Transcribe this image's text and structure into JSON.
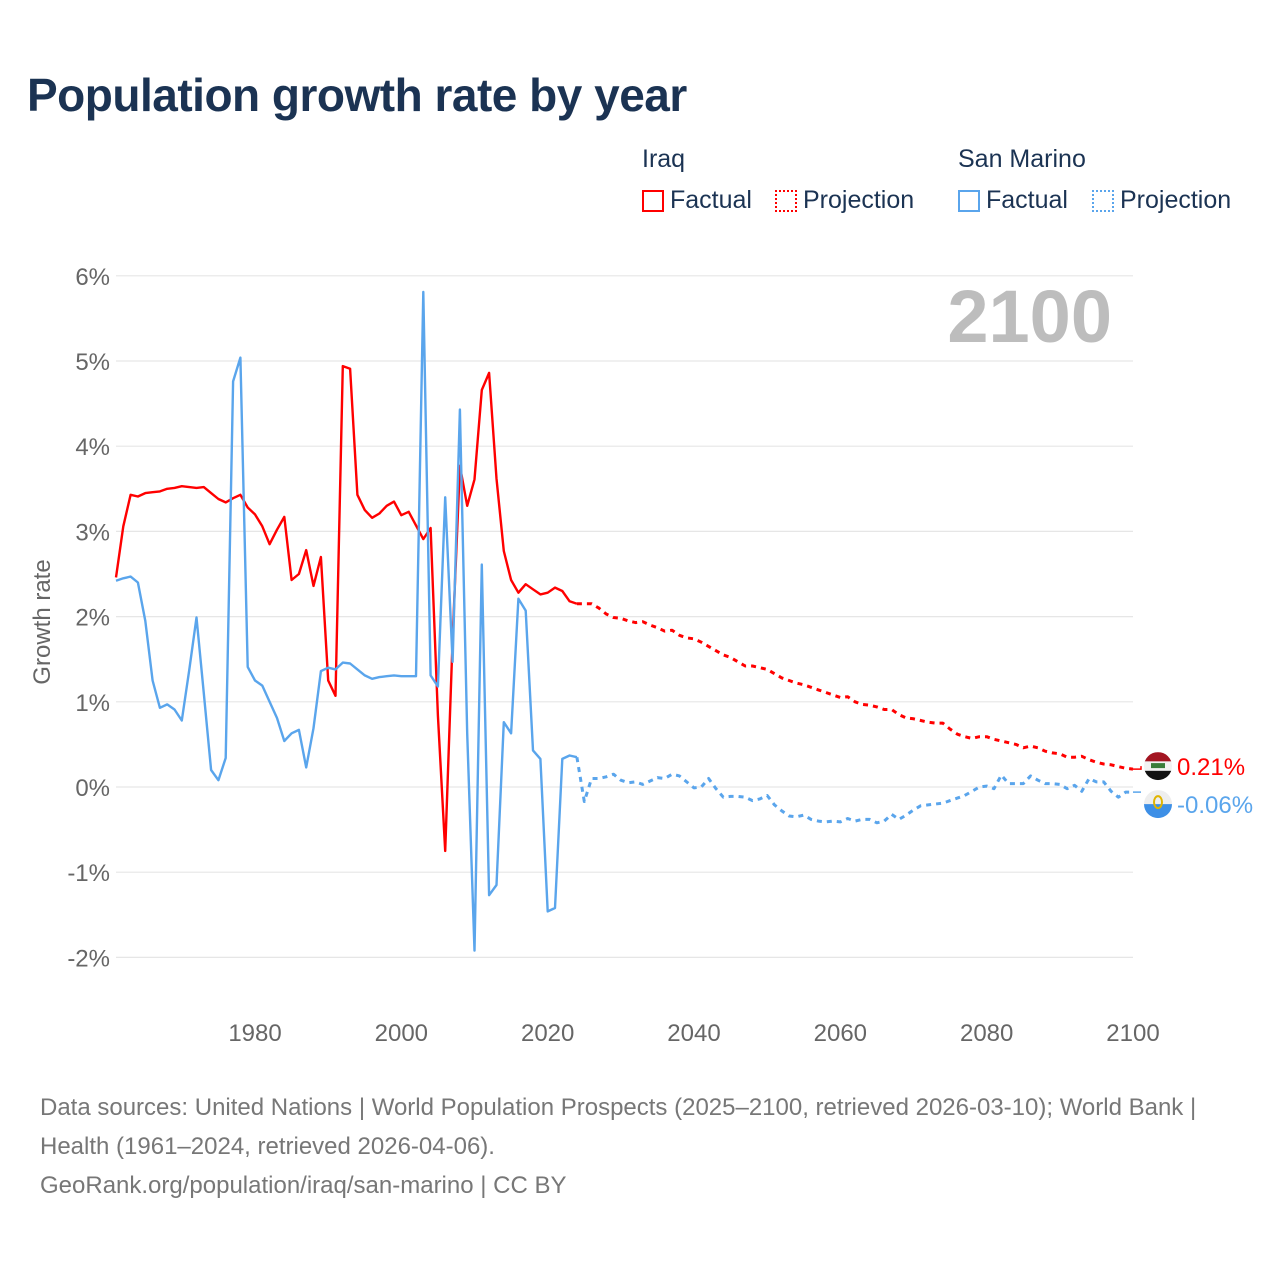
{
  "title": "Population growth rate by year",
  "legend": {
    "groups": [
      {
        "name": "Iraq",
        "factual": "Factual",
        "projection": "Projection"
      },
      {
        "name": "San Marino",
        "factual": "Factual",
        "projection": "Projection"
      }
    ]
  },
  "colors": {
    "iraq": "#ff0000",
    "san_marino": "#5aa5ec",
    "title": "#1b3353"
  },
  "source": {
    "line1": "Data sources: United Nations | World Population Prospects (2025–2100, retrieved 2026-03-10); World Bank | Health (1961–2024, retrieved 2026-04-06).",
    "line2": "GeoRank.org/population/iraq/san-marino | CC BY"
  },
  "chart_data": {
    "type": "line",
    "title": "Population growth rate by year",
    "xlabel": "",
    "ylabel": "Growth rate",
    "year_label": "2100",
    "xlim": [
      1961,
      2100
    ],
    "ylim": [
      -2,
      6
    ],
    "xticks": [
      1980,
      2000,
      2020,
      2040,
      2060,
      2080,
      2100
    ],
    "yticks": [
      -2,
      -1,
      0,
      1,
      2,
      3,
      4,
      5,
      6
    ],
    "ytick_labels": [
      "-2%",
      "-1%",
      "0%",
      "1%",
      "2%",
      "3%",
      "4%",
      "5%",
      "6%"
    ],
    "grid": true,
    "legend_position": "top-right",
    "series": [
      {
        "name": "Iraq",
        "kind": "factual",
        "start_year": 1961,
        "values": [
          2.46,
          3.06,
          3.43,
          3.41,
          3.45,
          3.46,
          3.47,
          3.5,
          3.51,
          3.53,
          3.52,
          3.51,
          3.52,
          3.45,
          3.38,
          3.34,
          3.39,
          3.43,
          3.28,
          3.2,
          3.06,
          2.85,
          3.02,
          3.17,
          2.43,
          2.5,
          2.78,
          2.36,
          2.7,
          1.25,
          1.07,
          4.94,
          4.91,
          3.43,
          3.25,
          3.16,
          3.21,
          3.3,
          3.35,
          3.19,
          3.23,
          3.07,
          2.91,
          3.04,
          0.84,
          -0.75,
          1.73,
          3.77,
          3.3,
          3.61,
          4.66,
          4.86,
          3.62,
          2.77,
          2.43,
          2.28,
          2.38,
          2.32,
          2.26,
          2.28,
          2.34,
          2.3,
          2.18,
          2.15
        ]
      },
      {
        "name": "Iraq",
        "kind": "projection",
        "start_year": 2024,
        "values": [
          2.15,
          2.15,
          2.15,
          2.1,
          2.03,
          1.99,
          1.98,
          1.95,
          1.93,
          1.94,
          1.9,
          1.87,
          1.83,
          1.84,
          1.78,
          1.75,
          1.74,
          1.7,
          1.65,
          1.6,
          1.55,
          1.52,
          1.47,
          1.42,
          1.42,
          1.4,
          1.38,
          1.33,
          1.28,
          1.25,
          1.22,
          1.2,
          1.17,
          1.14,
          1.11,
          1.08,
          1.05,
          1.06,
          1.0,
          0.97,
          0.96,
          0.94,
          0.91,
          0.91,
          0.85,
          0.81,
          0.8,
          0.78,
          0.76,
          0.75,
          0.75,
          0.68,
          0.62,
          0.59,
          0.57,
          0.59,
          0.59,
          0.56,
          0.54,
          0.52,
          0.5,
          0.46,
          0.48,
          0.46,
          0.42,
          0.4,
          0.39,
          0.35,
          0.35,
          0.36,
          0.32,
          0.29,
          0.27,
          0.26,
          0.24,
          0.22,
          0.21
        ]
      },
      {
        "name": "San Marino",
        "kind": "factual",
        "start_year": 1961,
        "values": [
          2.42,
          2.45,
          2.47,
          2.4,
          1.95,
          1.25,
          0.93,
          0.97,
          0.91,
          0.78,
          1.37,
          1.99,
          1.1,
          0.2,
          0.08,
          0.34,
          4.76,
          5.04,
          1.41,
          1.25,
          1.19,
          1.0,
          0.81,
          0.54,
          0.63,
          0.67,
          0.23,
          0.69,
          1.36,
          1.4,
          1.38,
          1.46,
          1.45,
          1.38,
          1.31,
          1.27,
          1.29,
          1.3,
          1.31,
          1.3,
          1.3,
          1.3,
          5.81,
          1.31,
          1.18,
          3.4,
          1.47,
          4.43,
          0.63,
          -1.92,
          2.61,
          -1.27,
          -1.15,
          0.76,
          0.63,
          2.21,
          2.07,
          0.43,
          0.33,
          -1.46,
          -1.42,
          0.33,
          0.37,
          0.35
        ]
      },
      {
        "name": "San Marino",
        "kind": "projection",
        "start_year": 2024,
        "values": [
          0.35,
          -0.17,
          0.1,
          0.1,
          0.12,
          0.15,
          0.08,
          0.05,
          0.06,
          0.03,
          0.07,
          0.11,
          0.1,
          0.15,
          0.13,
          0.06,
          -0.01,
          0.0,
          0.1,
          -0.02,
          -0.12,
          -0.11,
          -0.11,
          -0.12,
          -0.16,
          -0.14,
          -0.1,
          -0.21,
          -0.28,
          -0.34,
          -0.35,
          -0.33,
          -0.38,
          -0.4,
          -0.41,
          -0.4,
          -0.41,
          -0.37,
          -0.4,
          -0.38,
          -0.38,
          -0.42,
          -0.4,
          -0.32,
          -0.38,
          -0.33,
          -0.27,
          -0.22,
          -0.21,
          -0.2,
          -0.19,
          -0.16,
          -0.13,
          -0.1,
          -0.05,
          0.0,
          0.01,
          -0.02,
          0.14,
          0.04,
          0.04,
          0.04,
          0.13,
          0.08,
          0.04,
          0.04,
          0.03,
          -0.02,
          0.02,
          -0.05,
          0.1,
          0.06,
          0.06,
          -0.05,
          -0.12,
          -0.06,
          -0.06
        ]
      }
    ],
    "end_labels": [
      {
        "name": "Iraq",
        "label": "0.21%",
        "flag": "iraq-flag-icon"
      },
      {
        "name": "San Marino",
        "label": "-0.06%",
        "flag": "san-marino-flag-icon"
      }
    ]
  }
}
